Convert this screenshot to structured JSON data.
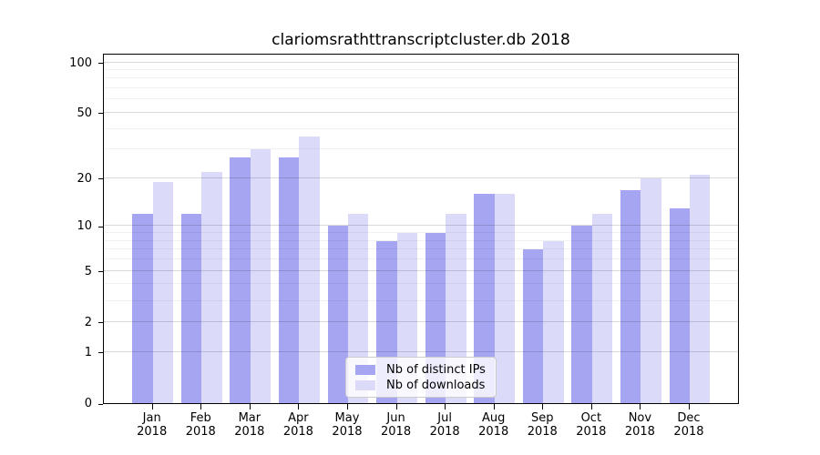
{
  "chart_data": {
    "type": "bar",
    "title": "clariomsrathttranscriptcluster.db 2018",
    "x_year": "2018",
    "categories": [
      "Jan",
      "Feb",
      "Mar",
      "Apr",
      "May",
      "Jun",
      "Jul",
      "Aug",
      "Sep",
      "Oct",
      "Nov",
      "Dec"
    ],
    "series": [
      {
        "name": "Nb of distinct IPs",
        "color": "#a5a5f2",
        "values": [
          12,
          12,
          27,
          27,
          10,
          8,
          9,
          16,
          7,
          10,
          17,
          13
        ]
      },
      {
        "name": "Nb of downloads",
        "color": "#dbdbf9",
        "values": [
          19,
          22,
          30,
          36,
          12,
          9,
          12,
          16,
          8,
          12,
          20,
          21
        ]
      }
    ],
    "yscale": "log1p",
    "ylim": [
      0,
      100
    ],
    "ytick_labels": [
      0,
      1,
      2,
      5,
      10,
      20,
      50,
      100
    ],
    "minor_gridlines": [
      3,
      4,
      6,
      7,
      8,
      9,
      30,
      40,
      60,
      70,
      80,
      90
    ],
    "grid": "on",
    "legend_position": "lower-center",
    "xlabel": "",
    "ylabel": ""
  },
  "colors": {
    "background": "#ffffff",
    "axis": "#000000",
    "major_grid": "#d9d9d9",
    "minor_grid": "#f0f0f0",
    "legend_border": "#cccccc"
  }
}
